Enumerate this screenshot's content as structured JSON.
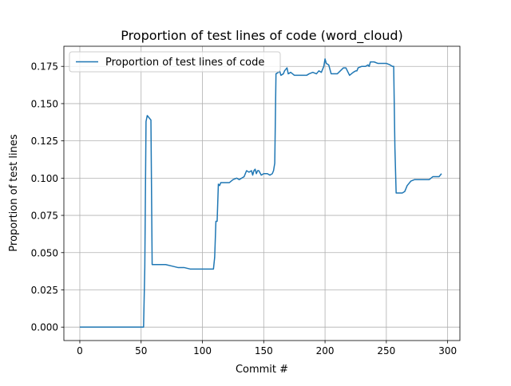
{
  "chart_data": {
    "type": "line",
    "title": "Proportion of test lines of code (word_cloud)",
    "xlabel": "Commit #",
    "ylabel": "Proportion of test lines",
    "xlim": [
      -13,
      310
    ],
    "ylim": [
      -0.009,
      0.1885
    ],
    "xticks": [
      0,
      50,
      100,
      150,
      200,
      250,
      300
    ],
    "yticks": [
      0.0,
      0.025,
      0.05,
      0.075,
      0.1,
      0.125,
      0.15,
      0.175
    ],
    "xtick_labels": [
      "0",
      "50",
      "100",
      "150",
      "200",
      "250",
      "300"
    ],
    "ytick_labels": [
      "0.000",
      "0.025",
      "0.050",
      "0.075",
      "0.100",
      "0.125",
      "0.150",
      "0.175"
    ],
    "grid": true,
    "legend": {
      "location": "upper-left",
      "entries": [
        "Proportion of test lines of code"
      ]
    },
    "series": [
      {
        "name": "Proportion of test lines of code",
        "color": "#1f77b4",
        "x": [
          0,
          52,
          53,
          54,
          55,
          57,
          58,
          59,
          65,
          70,
          75,
          80,
          85,
          90,
          95,
          100,
          105,
          108,
          109,
          110,
          111,
          112,
          113,
          114,
          115,
          120,
          122,
          125,
          128,
          130,
          132,
          134,
          136,
          138,
          140,
          141,
          142,
          143,
          144,
          145,
          146,
          148,
          150,
          153,
          155,
          157,
          158,
          159,
          160,
          162,
          163,
          164,
          166,
          167,
          168,
          169,
          170,
          172,
          175,
          180,
          185,
          187,
          190,
          193,
          195,
          197,
          199,
          200,
          201,
          203,
          205,
          210,
          215,
          217,
          220,
          223,
          225,
          226,
          227,
          230,
          233,
          235,
          236,
          237,
          238,
          240,
          243,
          245,
          250,
          253,
          255,
          256,
          257,
          258,
          260,
          263,
          265,
          267,
          270,
          273,
          275,
          280,
          285,
          288,
          290,
          293,
          295
        ],
        "y": [
          0.0,
          0.0,
          0.04,
          0.138,
          0.142,
          0.14,
          0.139,
          0.042,
          0.042,
          0.042,
          0.041,
          0.04,
          0.04,
          0.039,
          0.039,
          0.039,
          0.039,
          0.039,
          0.039,
          0.047,
          0.071,
          0.071,
          0.096,
          0.095,
          0.097,
          0.097,
          0.097,
          0.099,
          0.1,
          0.099,
          0.1,
          0.101,
          0.105,
          0.104,
          0.105,
          0.102,
          0.105,
          0.106,
          0.103,
          0.105,
          0.105,
          0.102,
          0.103,
          0.103,
          0.102,
          0.103,
          0.105,
          0.11,
          0.17,
          0.171,
          0.172,
          0.169,
          0.17,
          0.172,
          0.173,
          0.174,
          0.17,
          0.171,
          0.169,
          0.169,
          0.169,
          0.17,
          0.171,
          0.17,
          0.172,
          0.171,
          0.175,
          0.18,
          0.177,
          0.176,
          0.17,
          0.17,
          0.174,
          0.174,
          0.169,
          0.171,
          0.172,
          0.172,
          0.174,
          0.175,
          0.175,
          0.176,
          0.175,
          0.178,
          0.178,
          0.178,
          0.177,
          0.177,
          0.177,
          0.176,
          0.175,
          0.175,
          0.12,
          0.09,
          0.09,
          0.09,
          0.091,
          0.095,
          0.098,
          0.099,
          0.099,
          0.099,
          0.099,
          0.101,
          0.101,
          0.101,
          0.103
        ]
      }
    ]
  }
}
